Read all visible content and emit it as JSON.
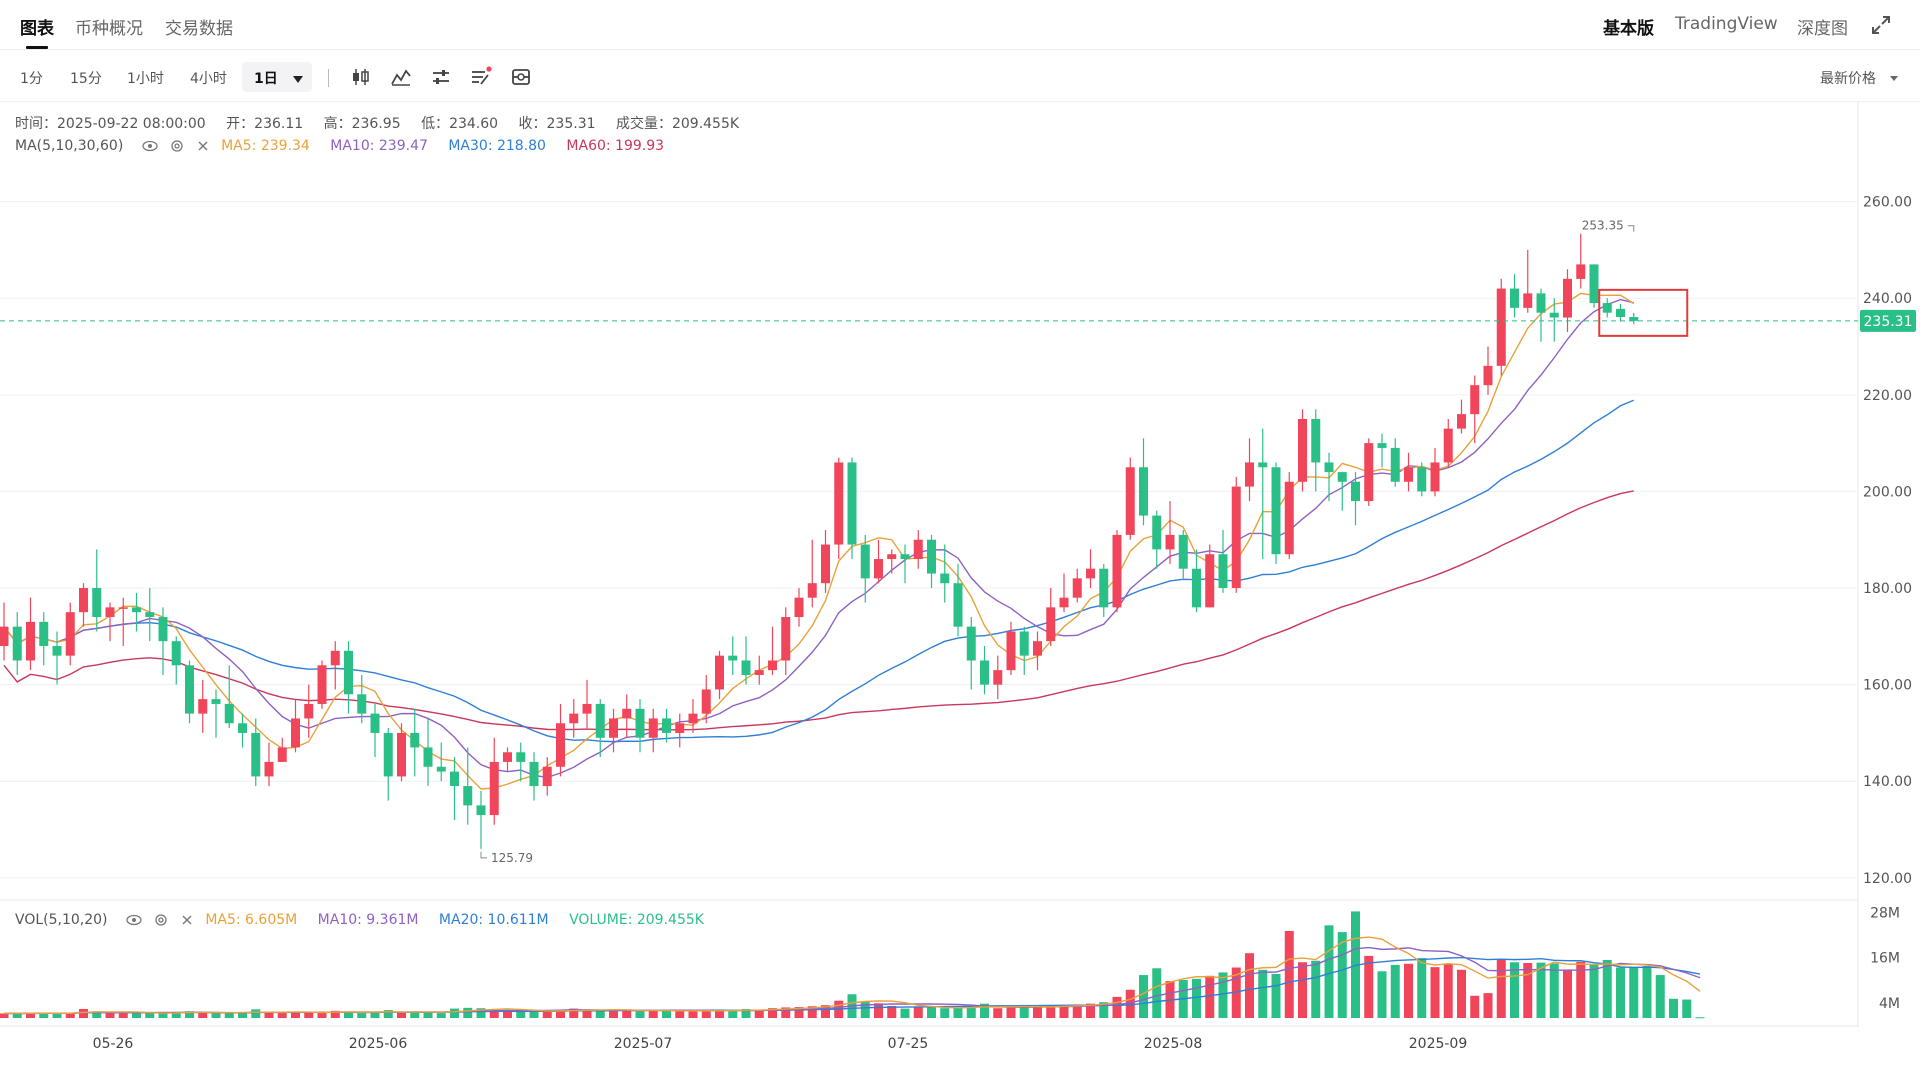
{
  "tabs": [
    {
      "label": "图表",
      "active": true
    },
    {
      "label": "币种概况",
      "active": false
    },
    {
      "label": "交易数据",
      "active": false
    }
  ],
  "right_tabs": [
    {
      "label": "基本版",
      "active": true
    },
    {
      "label": "TradingView",
      "active": false
    },
    {
      "label": "深度图",
      "active": false
    }
  ],
  "toolbar": {
    "intervals": [
      "1分",
      "15分",
      "1小时",
      "4小时"
    ],
    "active_interval": "1日",
    "price_type": "最新价格"
  },
  "info": {
    "time_label": "时间：",
    "time": "2025-09-22 08:00:00",
    "open_label": "开：",
    "open": "236.11",
    "high_label": "高：",
    "high": "236.95",
    "low_label": "低：",
    "low": "234.60",
    "close_label": "收：",
    "close": "235.31",
    "volume_label": "成交量：",
    "volume": "209.455K"
  },
  "ma_line": {
    "name": "MA(5,10,30,60)",
    "ma5": "MA5: 239.34",
    "ma10": "MA10: 239.47",
    "ma30": "MA30: 218.80",
    "ma60": "MA60: 199.93"
  },
  "vol_line": {
    "name": "VOL(5,10,20)",
    "ma5": "MA5: 6.605M",
    "ma10": "MA10: 9.361M",
    "ma20": "MA20: 10.611M",
    "volume": "VOLUME: 209.455K"
  },
  "colors": {
    "up": "#f0455a",
    "down": "#2bbf88",
    "ma5": "#e9a13b",
    "ma10": "#8d62c2",
    "ma30": "#2f7fd6",
    "ma60": "#c8375c",
    "price_line": "#2bbf88"
  },
  "chart_data": {
    "type": "candlestick",
    "price_axis": {
      "ticks": [
        "260.00",
        "240.00",
        "220.00",
        "200.00",
        "180.00",
        "160.00",
        "140.00",
        "120.00"
      ],
      "ylim": [
        115,
        280
      ]
    },
    "volume_axis": {
      "ticks": [
        "28M",
        "16M",
        "4M"
      ],
      "ylim": [
        0,
        30
      ]
    },
    "x_labels": [
      {
        "label": "05-26",
        "index": 8
      },
      {
        "label": "2025-06",
        "index": 28
      },
      {
        "label": "2025-07",
        "index": 48
      },
      {
        "label": "07-25",
        "index": 68
      },
      {
        "label": "2025-08",
        "index": 88
      },
      {
        "label": "2025-09",
        "index": 108
      }
    ],
    "current_price": "235.31",
    "max_annotation": {
      "label": "253.35",
      "index": 123,
      "value": 253.35
    },
    "min_annotation": {
      "label": "125.79",
      "index": 36,
      "value": 125.79
    },
    "candles": [
      [
        168,
        172,
        177,
        165
      ],
      [
        172,
        165,
        175,
        162
      ],
      [
        165,
        173,
        178,
        163
      ],
      [
        173,
        168,
        175,
        164
      ],
      [
        168,
        166,
        171,
        160
      ],
      [
        166,
        175,
        177,
        164
      ],
      [
        175,
        180,
        181,
        172
      ],
      [
        180,
        174,
        188,
        171
      ],
      [
        174,
        176,
        177,
        169
      ],
      [
        176,
        176,
        178,
        168
      ],
      [
        176,
        175,
        179,
        171
      ],
      [
        175,
        174,
        180,
        169
      ],
      [
        174,
        169,
        176,
        162
      ],
      [
        169,
        164,
        170,
        160
      ],
      [
        164,
        154,
        165,
        152
      ],
      [
        154,
        157,
        161,
        150
      ],
      [
        157,
        156,
        159,
        149
      ],
      [
        156,
        152,
        164,
        151
      ],
      [
        152,
        150,
        154,
        147
      ],
      [
        150,
        141,
        153,
        139
      ],
      [
        141,
        144,
        148,
        139
      ],
      [
        144,
        147,
        149,
        144
      ],
      [
        147,
        153,
        157,
        146
      ],
      [
        153,
        156,
        160,
        149
      ],
      [
        156,
        164,
        165,
        155
      ],
      [
        164,
        167,
        169,
        159
      ],
      [
        167,
        158,
        169,
        154
      ],
      [
        158,
        154,
        162,
        152
      ],
      [
        154,
        150,
        156,
        145
      ],
      [
        150,
        141,
        151,
        136
      ],
      [
        141,
        150,
        152,
        140
      ],
      [
        150,
        147,
        155,
        141
      ],
      [
        147,
        143,
        153,
        139
      ],
      [
        143,
        142,
        148,
        140
      ],
      [
        142,
        139,
        145,
        132
      ],
      [
        139,
        135,
        147,
        131
      ],
      [
        135,
        133,
        138,
        126
      ],
      [
        133,
        144,
        149,
        131
      ],
      [
        144,
        146,
        147,
        142
      ],
      [
        146,
        144,
        148,
        140
      ],
      [
        144,
        139,
        146,
        136
      ],
      [
        139,
        143,
        145,
        137
      ],
      [
        143,
        152,
        156,
        141
      ],
      [
        152,
        154,
        157,
        149
      ],
      [
        154,
        156,
        161,
        151
      ],
      [
        156,
        149,
        157,
        145
      ],
      [
        149,
        153,
        155,
        146
      ],
      [
        153,
        155,
        158,
        149
      ],
      [
        155,
        149,
        157,
        146
      ],
      [
        149,
        153,
        155,
        146
      ],
      [
        153,
        150,
        155,
        148
      ],
      [
        150,
        152,
        154,
        147
      ],
      [
        152,
        154,
        157,
        150
      ],
      [
        154,
        159,
        162,
        152
      ],
      [
        159,
        166,
        167,
        157
      ],
      [
        166,
        165,
        170,
        162
      ],
      [
        165,
        162,
        170,
        160
      ],
      [
        162,
        163,
        166,
        160
      ],
      [
        163,
        165,
        172,
        162
      ],
      [
        165,
        174,
        176,
        162
      ],
      [
        174,
        178,
        180,
        172
      ],
      [
        178,
        181,
        190,
        176
      ],
      [
        181,
        189,
        192,
        179
      ],
      [
        189,
        206,
        207,
        186
      ],
      [
        206,
        189,
        207,
        186
      ],
      [
        189,
        182,
        191,
        177
      ],
      [
        182,
        186,
        190,
        181
      ],
      [
        186,
        187,
        188,
        183
      ],
      [
        187,
        186,
        189,
        181
      ],
      [
        186,
        190,
        192,
        184
      ],
      [
        190,
        183,
        191,
        180
      ],
      [
        183,
        181,
        189,
        177
      ],
      [
        181,
        172,
        185,
        170
      ],
      [
        172,
        165,
        174,
        159
      ],
      [
        165,
        160,
        168,
        158
      ],
      [
        160,
        163,
        166,
        157
      ],
      [
        163,
        171,
        173,
        162
      ],
      [
        171,
        166,
        172,
        162
      ],
      [
        166,
        169,
        171,
        163
      ],
      [
        169,
        176,
        180,
        168
      ],
      [
        176,
        178,
        183,
        175
      ],
      [
        178,
        182,
        184,
        177
      ],
      [
        182,
        184,
        188,
        180
      ],
      [
        184,
        176,
        185,
        174
      ],
      [
        176,
        191,
        192,
        175
      ],
      [
        191,
        205,
        207,
        190
      ],
      [
        205,
        195,
        211,
        193
      ],
      [
        195,
        188,
        196,
        184
      ],
      [
        188,
        191,
        198,
        185
      ],
      [
        191,
        184,
        192,
        182
      ],
      [
        184,
        176,
        188,
        175
      ],
      [
        176,
        187,
        189,
        176
      ],
      [
        187,
        180,
        192,
        179
      ],
      [
        180,
        201,
        203,
        179
      ],
      [
        201,
        206,
        211,
        198
      ],
      [
        206,
        205,
        213,
        186
      ],
      [
        205,
        187,
        206,
        185
      ],
      [
        187,
        202,
        204,
        186
      ],
      [
        202,
        215,
        217,
        200
      ],
      [
        215,
        206,
        217,
        200
      ],
      [
        206,
        204,
        208,
        198
      ],
      [
        204,
        202,
        204,
        196
      ],
      [
        202,
        198,
        204,
        193
      ],
      [
        198,
        210,
        211,
        197
      ],
      [
        210,
        209,
        212,
        205
      ],
      [
        209,
        202,
        211,
        201
      ],
      [
        202,
        205,
        208,
        200
      ],
      [
        205,
        200,
        206,
        199
      ],
      [
        200,
        206,
        209,
        199
      ],
      [
        206,
        213,
        215,
        205
      ],
      [
        213,
        216,
        219,
        212
      ],
      [
        216,
        222,
        224,
        210
      ],
      [
        222,
        226,
        230,
        220
      ],
      [
        226,
        242,
        244,
        224
      ],
      [
        242,
        238,
        245,
        236
      ],
      [
        238,
        241,
        250,
        237
      ],
      [
        241,
        237,
        242,
        231
      ],
      [
        237,
        236,
        240,
        231
      ],
      [
        236,
        244,
        246,
        233
      ],
      [
        244,
        247,
        253.35,
        242
      ],
      [
        247,
        239,
        247,
        238
      ],
      [
        239,
        237,
        240,
        236
      ],
      [
        237.8,
        236.11,
        238.8,
        235.2
      ],
      [
        236.11,
        235.31,
        236.95,
        234.6
      ]
    ],
    "volumes": [
      1.2,
      1.3,
      1.1,
      1.4,
      1.2,
      1.3,
      2.4,
      1.8,
      1.4,
      1.2,
      1.3,
      1.4,
      1.3,
      1.5,
      1.8,
      1.4,
      1.3,
      1.2,
      1.5,
      2.3,
      1.4,
      1.3,
      1.5,
      1.4,
      1.7,
      1.9,
      1.5,
      1.3,
      1.4,
      2.1,
      1.6,
      1.5,
      1.4,
      1.3,
      2.5,
      2.7,
      2.6,
      2.3,
      2.0,
      1.8,
      1.6,
      1.7,
      2.2,
      2.5,
      2.3,
      1.9,
      2.1,
      2.0,
      1.8,
      2.1,
      1.9,
      1.8,
      1.9,
      2.0,
      1.9,
      2.2,
      2.4,
      1.9,
      2.6,
      2.8,
      2.9,
      3.1,
      3.4,
      4.6,
      6.3,
      4.5,
      3.9,
      3.2,
      2.5,
      2.8,
      2.9,
      2.6,
      2.7,
      2.9,
      3.8,
      2.6,
      2.9,
      3.1,
      2.8,
      3.2,
      3.5,
      3.6,
      3.8,
      4.2,
      5.6,
      7.5,
      11.4,
      13.2,
      9.8,
      10.1,
      10.4,
      11.2,
      12.1,
      13.4,
      17.2,
      12.8,
      11.7,
      23.1,
      14.8,
      15.2,
      24.6,
      22.8,
      28.3,
      16.5,
      12.4,
      14.1,
      14.4,
      15.9,
      13.5,
      14.2,
      12.8,
      5.9,
      6.6,
      15.6,
      14.8,
      14.6,
      14.7,
      14.5,
      12.9,
      14.9,
      14.1,
      15.4,
      13.4,
      13.6,
      13.8,
      11.4,
      5.1,
      4.9,
      0.2
    ]
  }
}
